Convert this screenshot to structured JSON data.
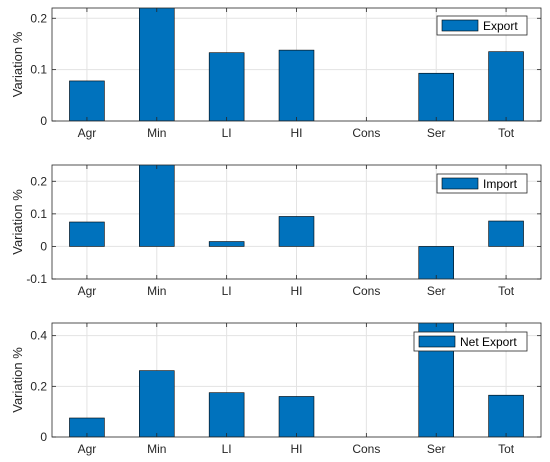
{
  "chart_data": [
    {
      "type": "bar",
      "categories": [
        "Agr",
        "Min",
        "LI",
        "HI",
        "Cons",
        "Ser",
        "Tot"
      ],
      "values": [
        0.078,
        0.23,
        0.133,
        0.138,
        0,
        0.093,
        0.135
      ],
      "legend": "Export",
      "ylabel": "Variation %",
      "ylim": [
        0,
        0.22
      ],
      "yticks": [
        0,
        0.1,
        0.2
      ],
      "ytick_labels": [
        "0",
        "0.1",
        "0.2"
      ],
      "grid": true,
      "legend_position": "top-right",
      "bar_color": "#0072BD"
    },
    {
      "type": "bar",
      "categories": [
        "Agr",
        "Min",
        "LI",
        "HI",
        "Cons",
        "Ser",
        "Tot"
      ],
      "values": [
        0.075,
        0.27,
        0.015,
        0.092,
        0,
        -0.11,
        0.078
      ],
      "legend": "Import",
      "ylabel": "Variation %",
      "ylim": [
        -0.1,
        0.25
      ],
      "yticks": [
        -0.1,
        0,
        0.1,
        0.2
      ],
      "ytick_labels": [
        "-0.1",
        "0",
        "0.1",
        "0.2"
      ],
      "grid": true,
      "legend_position": "top-right",
      "bar_color": "#0072BD"
    },
    {
      "type": "bar",
      "categories": [
        "Agr",
        "Min",
        "LI",
        "HI",
        "Cons",
        "Ser",
        "Tot"
      ],
      "values": [
        0.075,
        0.262,
        0.175,
        0.16,
        0,
        0.5,
        0.165
      ],
      "legend": "Net Export",
      "ylabel": "Variation %",
      "ylim": [
        0,
        0.45
      ],
      "yticks": [
        0,
        0.2,
        0.4
      ],
      "ytick_labels": [
        "0",
        "0.2",
        "0.4"
      ],
      "grid": true,
      "legend_position": "top-right",
      "bar_color": "#0072BD"
    }
  ]
}
